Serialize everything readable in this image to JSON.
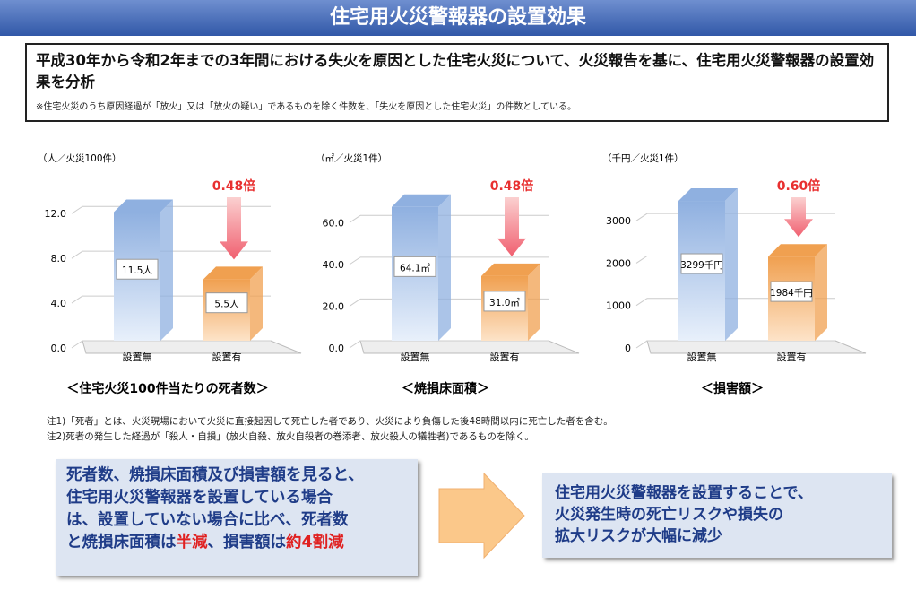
{
  "title": "住宅用火災警報器の設置効果",
  "header": {
    "heading": "平成30年から令和2年までの3年間における失火を原因とした住宅火災について、火災報告を基に、住宅用火災警報器の設置効果を分析",
    "note": "※住宅火災のうち原因経過が「放火」又は「放火の疑い」であるものを除く件数を、「失火を原因とした住宅火災」の件数としている。"
  },
  "chart_data": [
    {
      "type": "bar",
      "unit": "（人／火災100件）",
      "categories": [
        "設置無",
        "設置有"
      ],
      "values": [
        11.5,
        5.5
      ],
      "value_labels": [
        "11.5人",
        "5.5人"
      ],
      "ylim": [
        0,
        12.5
      ],
      "yticks": [
        {
          "value": 0,
          "label": "0.0"
        },
        {
          "value": 4,
          "label": "4.0"
        },
        {
          "value": 8,
          "label": "8.0"
        },
        {
          "value": 12,
          "label": "12.0"
        }
      ],
      "annotation": "0.48倍",
      "caption": "＜住宅火災100件当たりの死者数＞",
      "colors": [
        "#8fb0e0",
        "#f0a050"
      ]
    },
    {
      "type": "bar",
      "unit": "（㎡／火災1件）",
      "categories": [
        "設置無",
        "設置有"
      ],
      "values": [
        64.1,
        31.0
      ],
      "value_labels": [
        "64.1㎡",
        "31.0㎡"
      ],
      "ylim": [
        0,
        67
      ],
      "yticks": [
        {
          "value": 0,
          "label": "0.0"
        },
        {
          "value": 20,
          "label": "20.0"
        },
        {
          "value": 40,
          "label": "40.0"
        },
        {
          "value": 60,
          "label": "60.0"
        }
      ],
      "annotation": "0.48倍",
      "caption": "＜焼損床面積＞",
      "colors": [
        "#8fb0e0",
        "#f0a050"
      ]
    },
    {
      "type": "bar",
      "unit": "（千円／火災1件）",
      "categories": [
        "設置無",
        "設置有"
      ],
      "values": [
        3299,
        1984
      ],
      "value_labels": [
        "3299千円",
        "1984千円"
      ],
      "ylim": [
        0,
        3300
      ],
      "yticks": [
        0,
        1000,
        2000,
        3000
      ],
      "annotation": "0.60倍",
      "caption": "＜損害額＞",
      "colors": [
        "#8fb0e0",
        "#f0a050"
      ]
    }
  ],
  "notes": [
    "注1)「死者」とは、火災現場において火災に直接起因して死亡した者であり、火災により負傷した後48時間以内に死亡した者を含む。",
    "注2)死者の発生した経過が「殺人・自損」(放火自殺、放火自殺者の巻添者、放火殺人の犠牲者)であるものを除く。"
  ],
  "summary": {
    "lines": [
      "死者数、焼損床面積及び損害額を見ると、",
      "住宅用火災警報器を設置している場合",
      "は、設置していない場合に比べ、死者数"
    ],
    "last_line": [
      "と焼損床面積は",
      "半減",
      "、損害額は",
      "約4割減"
    ]
  },
  "result": [
    "住宅用火災警報器を設置することで、",
    "火災発生時の死亡リスクや損失の",
    "拡大リスクが大幅に減少"
  ]
}
